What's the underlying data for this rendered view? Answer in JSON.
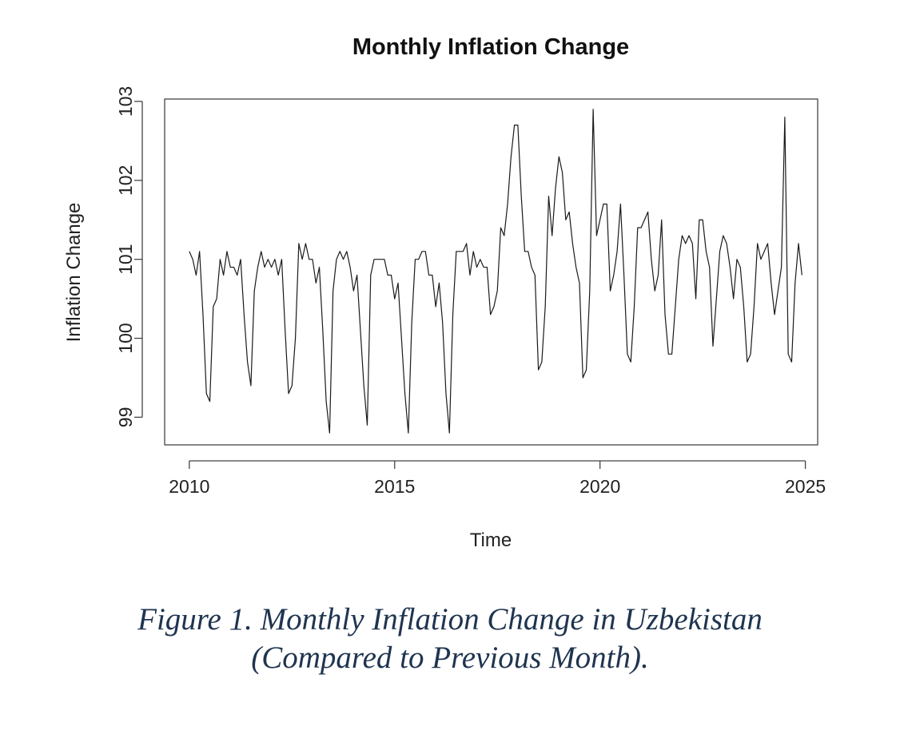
{
  "chart_data": {
    "type": "line",
    "title": "Monthly Inflation Change",
    "xlabel": "Time",
    "ylabel": "Inflation Change",
    "x_ticks": [
      2010,
      2015,
      2020,
      2025
    ],
    "y_ticks": [
      99,
      100,
      101,
      102,
      103
    ],
    "xlim": [
      2009.4,
      2025.3
    ],
    "ylim": [
      98.65,
      103.03
    ],
    "grid": false,
    "series": [
      {
        "x_start": "2010-01",
        "frequency": "monthly",
        "values": [
          101.1,
          101.0,
          100.8,
          101.1,
          100.3,
          99.3,
          99.2,
          100.4,
          100.5,
          101.0,
          100.8,
          101.1,
          100.9,
          100.9,
          100.8,
          101.0,
          100.3,
          99.7,
          99.4,
          100.6,
          100.9,
          101.1,
          100.9,
          101.0,
          100.9,
          101.0,
          100.8,
          101.0,
          100.1,
          99.3,
          99.4,
          100.0,
          101.2,
          101.0,
          101.2,
          101.0,
          101.0,
          100.7,
          100.9,
          100.1,
          99.2,
          98.8,
          100.6,
          101.0,
          101.1,
          101.0,
          101.1,
          100.9,
          100.6,
          100.8,
          100.1,
          99.4,
          98.9,
          100.8,
          101.0,
          101.0,
          101.0,
          101.0,
          100.8,
          100.8,
          100.5,
          100.7,
          100.0,
          99.3,
          98.8,
          100.2,
          101.0,
          101.0,
          101.1,
          101.1,
          100.8,
          100.8,
          100.4,
          100.7,
          100.2,
          99.3,
          98.8,
          100.3,
          101.1,
          101.1,
          101.1,
          101.2,
          100.8,
          101.1,
          100.9,
          101.0,
          100.9,
          100.9,
          100.3,
          100.4,
          100.6,
          101.4,
          101.3,
          101.7,
          102.3,
          102.7,
          102.7,
          101.8,
          101.1,
          101.1,
          100.9,
          100.8,
          99.6,
          99.7,
          100.4,
          101.8,
          101.3,
          101.9,
          102.3,
          102.1,
          101.5,
          101.6,
          101.2,
          100.9,
          100.7,
          99.5,
          99.6,
          100.6,
          102.9,
          101.3,
          101.5,
          101.7,
          101.7,
          100.6,
          100.8,
          101.1,
          101.7,
          100.8,
          99.8,
          99.7,
          100.4,
          101.4,
          101.4,
          101.5,
          101.6,
          101.0,
          100.6,
          100.8,
          101.5,
          100.3,
          99.8,
          99.8,
          100.4,
          101.0,
          101.3,
          101.2,
          101.3,
          101.2,
          100.5,
          101.5,
          101.5,
          101.1,
          100.9,
          99.9,
          100.5,
          101.1,
          101.3,
          101.2,
          100.9,
          100.5,
          101.0,
          100.9,
          100.4,
          99.7,
          99.8,
          100.4,
          101.2,
          101.0,
          101.1,
          101.2,
          100.7,
          100.3,
          100.6,
          100.9,
          102.8,
          99.8,
          99.7,
          100.7,
          101.2,
          100.8
        ]
      }
    ]
  },
  "caption": {
    "line1": "Figure 1. Monthly Inflation Change in Uzbekistan",
    "line2": "(Compared to Previous Month)."
  }
}
